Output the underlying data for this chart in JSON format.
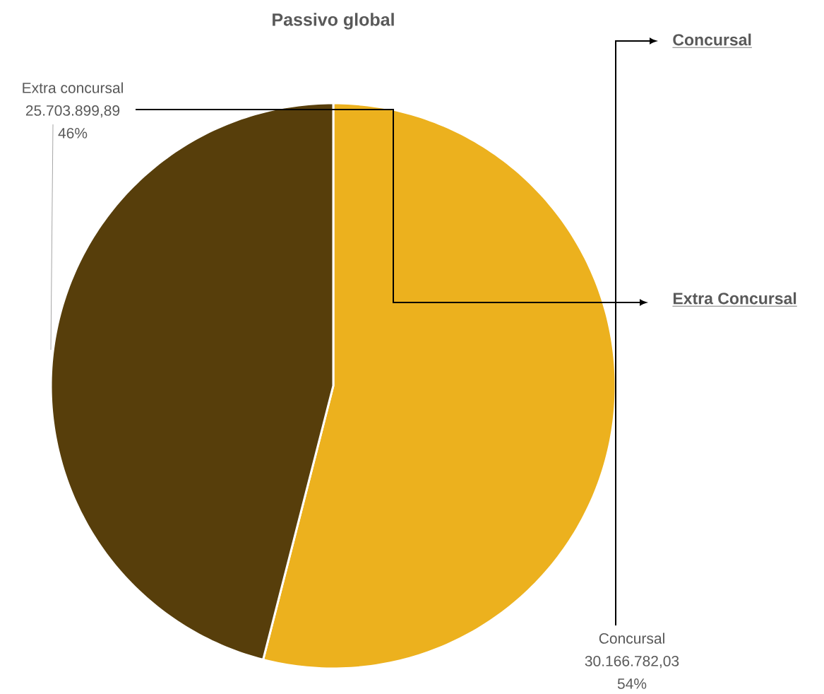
{
  "chart_data": {
    "type": "pie",
    "title": "Passivo global",
    "categories": [
      "Concursal",
      "Extra concursal"
    ],
    "values": [
      30166782.03,
      25703899.89
    ],
    "colors": [
      "#ecb11e",
      "#573e0b"
    ],
    "value_labels": [
      "30.166.782,03",
      "25.703.899,89"
    ],
    "annotations": [
      "Concursal",
      "Extra Concursal",
      "54%",
      "46%"
    ]
  }
}
